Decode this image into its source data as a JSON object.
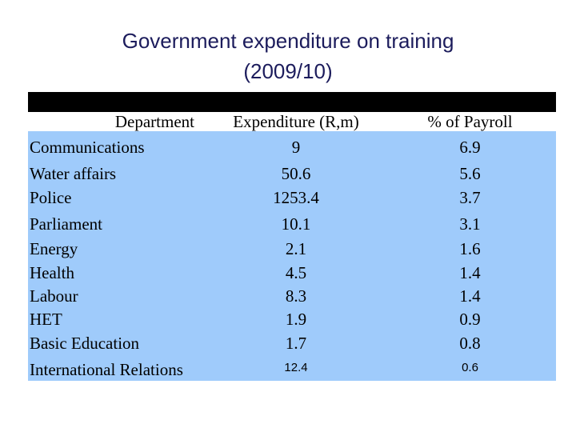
{
  "title": {
    "line1": "Government expenditure on training",
    "line2": "(2009/10)"
  },
  "table": {
    "header": [
      "Department",
      "Expenditure (R,m)",
      "% of Payroll"
    ],
    "rows": [
      [
        "Communications",
        9,
        6.9
      ],
      [
        "Water affairs",
        50.6,
        5.6
      ],
      [
        "Police",
        1253.4,
        3.7
      ],
      [
        "Parliament",
        10.1,
        3.1
      ],
      [
        "Energy",
        2.1,
        1.6
      ],
      [
        "Health",
        4.5,
        1.4
      ],
      [
        "Labour",
        8.3,
        1.4
      ],
      [
        "HET",
        1.9,
        0.9
      ],
      [
        "Basic Education",
        1.7,
        0.8
      ],
      [
        "International Relations",
        12.4,
        0.6
      ]
    ]
  }
}
